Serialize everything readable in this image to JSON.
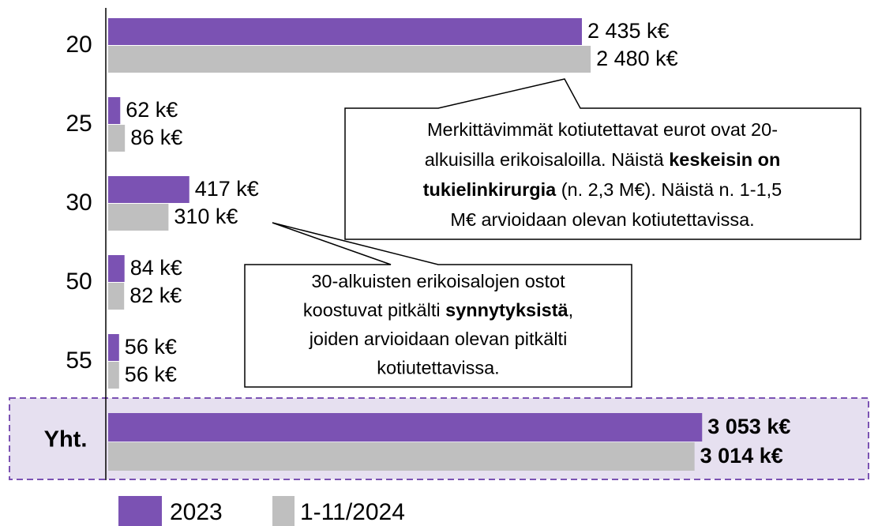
{
  "chart_data": {
    "type": "barh",
    "categories": [
      "20",
      "25",
      "30",
      "50",
      "55",
      "Yht."
    ],
    "series": [
      {
        "name": "2023",
        "color": "#7b52b3",
        "values": [
          2435,
          62,
          417,
          84,
          56,
          3053
        ],
        "value_labels": [
          "2 435 k€",
          "62 k€",
          "417 k€",
          "84 k€",
          "56 k€",
          "3 053 k€"
        ]
      },
      {
        "name": "1-11/2024",
        "color": "#bfbfbf",
        "values": [
          2480,
          86,
          310,
          82,
          56,
          3014
        ],
        "value_labels": [
          "2 480 k€",
          "86 k€",
          "310 k€",
          "82 k€",
          "56 k€",
          "3 014 k€"
        ]
      }
    ],
    "annotations": [
      {
        "lines": [
          [
            {
              "text": "Merkittävimmät kotiutettavat eurot ovat 20-"
            }
          ],
          [
            {
              "text": "alkuisilla erikoisaloilla. Näistä "
            },
            {
              "text": "keskeisin on",
              "bold": true
            }
          ],
          [
            {
              "text": "tukielinkirurgia",
              "bold": true
            },
            {
              "text": " (n. 2,3 M€). Näistä n. 1-1,5"
            }
          ],
          [
            {
              "text": "M€ arvioidaan olevan kotiutettavissa."
            }
          ]
        ]
      },
      {
        "lines": [
          [
            {
              "text": "30-alkuisten erikoisalojen ostot"
            }
          ],
          [
            {
              "text": "koostuvat pitkälti "
            },
            {
              "text": "synnytyksistä",
              "bold": true
            },
            {
              "text": ","
            }
          ],
          [
            {
              "text": "joiden arvioidaan olevan pitkälti"
            }
          ],
          [
            {
              "text": "kotiutettavissa."
            }
          ]
        ]
      }
    ]
  }
}
